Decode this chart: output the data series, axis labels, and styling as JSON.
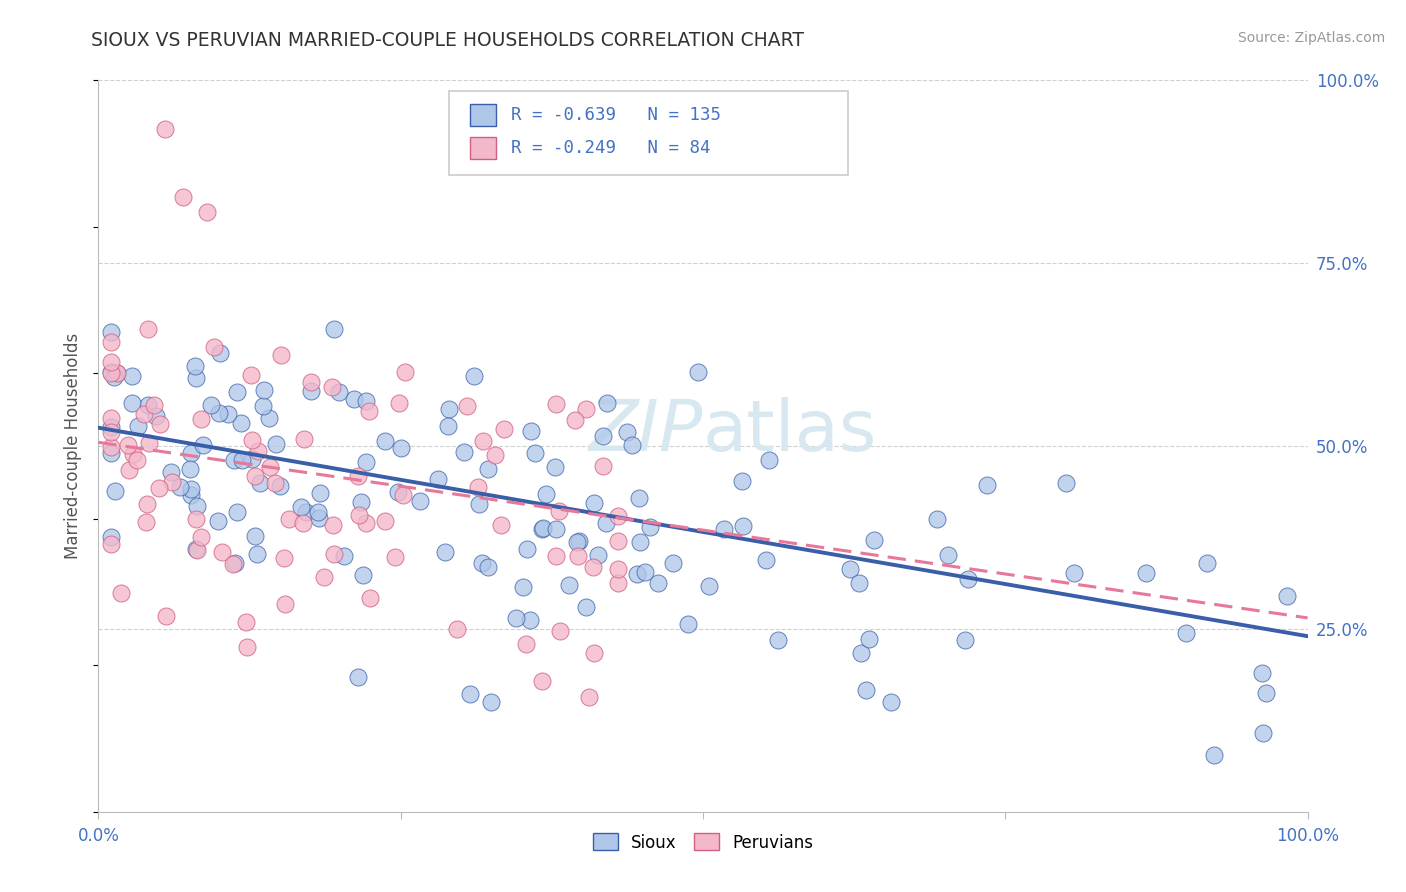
{
  "title": "SIOUX VS PERUVIAN MARRIED-COUPLE HOUSEHOLDS CORRELATION CHART",
  "source": "Source: ZipAtlas.com",
  "ylabel": "Married-couple Households",
  "sioux_R": -0.639,
  "sioux_N": 135,
  "peruvian_R": -0.249,
  "peruvian_N": 84,
  "sioux_color": "#aec6e8",
  "peruvian_color": "#f4b8cb",
  "sioux_line_color": "#3a5fa8",
  "peruvian_line_color": "#e8789a",
  "background_color": "#ffffff",
  "grid_color": "#d0d0d0",
  "title_color": "#333333",
  "axis_label_color": "#4472c4",
  "watermark_color": "#d8e8f0",
  "sioux_intercept": 0.525,
  "sioux_slope": -0.285,
  "peruvian_intercept": 0.505,
  "peruvian_slope": -0.24
}
